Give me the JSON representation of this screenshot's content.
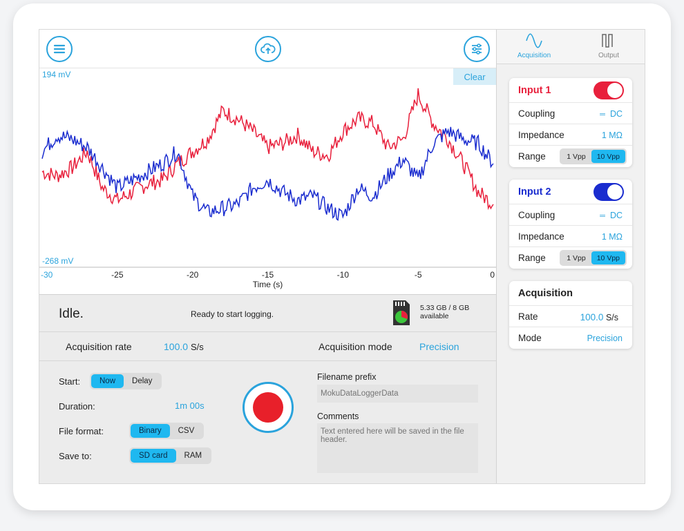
{
  "colors": {
    "accent": "#2aa3dc",
    "input1": "#e8203c",
    "input2": "#1a2ccf",
    "record": "#e8202a"
  },
  "toolbar": {
    "menu_icon": "menu-icon",
    "upload_icon": "cloud-upload-icon",
    "settings_icon": "sliders-icon",
    "clear_label": "Clear"
  },
  "chart_data": {
    "type": "line",
    "title": "",
    "xlabel": "Time (s)",
    "ylabel": "",
    "xlim": [
      -30,
      0
    ],
    "ylim_labels": {
      "top": "194 mV",
      "bottom": "-268 mV"
    },
    "x_ticks": [
      "-30",
      "-25",
      "-20",
      "-15",
      "-10",
      "-5",
      "0"
    ],
    "series": [
      {
        "color": "#e8203c",
        "x": [
          -30,
          -29,
          -28,
          -27,
          -26,
          -25,
          -24,
          -23,
          -22,
          -21,
          -20,
          -19,
          -18,
          -17,
          -16,
          -15,
          -14,
          -13,
          -12,
          -11,
          -10,
          -9,
          -8,
          -7,
          -6,
          -5,
          -4,
          -3,
          -2,
          -1,
          0
        ],
        "y": [
          -40,
          -50,
          -30,
          10,
          -80,
          -110,
          -90,
          -70,
          -60,
          -20,
          10,
          40,
          110,
          90,
          60,
          20,
          30,
          50,
          10,
          0,
          60,
          90,
          80,
          20,
          40,
          150,
          80,
          40,
          -20,
          -90,
          -120
        ]
      },
      {
        "color": "#1a2ccf",
        "x": [
          -30,
          -29,
          -28,
          -27,
          -26,
          -25,
          -24,
          -23,
          -22,
          -21,
          -20,
          -19,
          -18,
          -17,
          -16,
          -15,
          -14,
          -13,
          -12,
          -11,
          -10,
          -9,
          -8,
          -7,
          -6,
          -5,
          -4,
          -3,
          -2,
          -1,
          0
        ],
        "y": [
          10,
          50,
          40,
          20,
          -30,
          -80,
          -60,
          -40,
          -20,
          10,
          -100,
          -140,
          -130,
          -120,
          -80,
          -60,
          -90,
          -110,
          -100,
          -130,
          -150,
          -80,
          -100,
          -50,
          -10,
          -60,
          30,
          60,
          40,
          30,
          -20
        ]
      }
    ]
  },
  "status": {
    "state": "Idle.",
    "message": "Ready to start logging.",
    "storage_line1": "5.33 GB / 8 GB",
    "storage_line2": "available",
    "sd_icon": "sd-card-icon"
  },
  "acquisition_row": {
    "rate_label": "Acquisition rate",
    "rate_value": "100.0",
    "rate_unit": "S/s",
    "mode_label": "Acquisition mode",
    "mode_value": "Precision"
  },
  "settings": {
    "start_label": "Start:",
    "start_options": [
      "Now",
      "Delay"
    ],
    "start_selected": "Now",
    "duration_label": "Duration:",
    "duration_value": "1m 00s",
    "format_label": "File format:",
    "format_options": [
      "Binary",
      "CSV"
    ],
    "format_selected": "Binary",
    "save_label": "Save to:",
    "save_options": [
      "SD card",
      "RAM"
    ],
    "save_selected": "SD card",
    "record_icon": "record-icon"
  },
  "filename": {
    "label": "Filename prefix",
    "placeholder": "MokuDataLoggerData"
  },
  "comments": {
    "label": "Comments",
    "placeholder": "Text entered here will be saved in the file header."
  },
  "sidebar": {
    "tabs": [
      {
        "label": "Acquisition",
        "icon": "sine-wave-icon",
        "active": true
      },
      {
        "label": "Output",
        "icon": "square-wave-icon",
        "active": false
      }
    ],
    "input1": {
      "title": "Input 1",
      "enabled": true,
      "coupling_label": "Coupling",
      "coupling_value": "DC",
      "impedance_label": "Impedance",
      "impedance_value": "1 MΩ",
      "range_label": "Range",
      "range_options": [
        "1 Vpp",
        "10 Vpp"
      ],
      "range_selected": "10 Vpp"
    },
    "input2": {
      "title": "Input 2",
      "enabled": true,
      "coupling_label": "Coupling",
      "coupling_value": "DC",
      "impedance_label": "Impedance",
      "impedance_value": "1 MΩ",
      "range_label": "Range",
      "range_options": [
        "1 Vpp",
        "10 Vpp"
      ],
      "range_selected": "10 Vpp"
    },
    "acquisition": {
      "title": "Acquisition",
      "rate_label": "Rate",
      "rate_value": "100.0",
      "rate_unit": "S/s",
      "mode_label": "Mode",
      "mode_value": "Precision"
    }
  }
}
